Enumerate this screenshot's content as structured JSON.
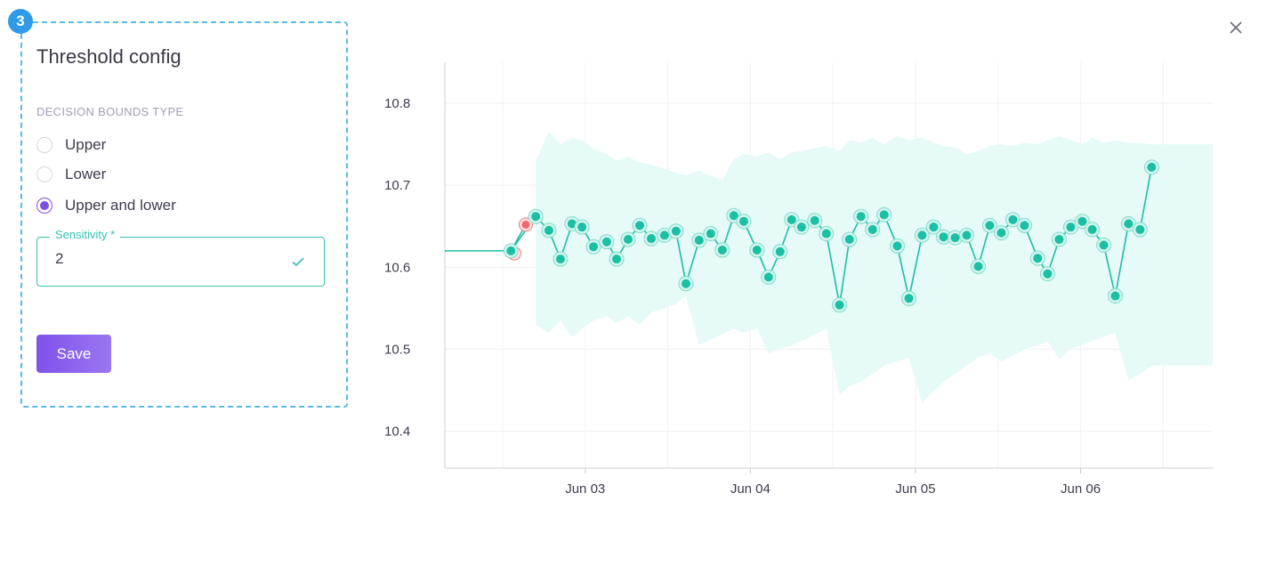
{
  "dialog": {
    "step_number": "3",
    "title": "Threshold config",
    "bounds_label": "DECISION BOUNDS TYPE",
    "options": [
      {
        "label": "Upper",
        "checked": false
      },
      {
        "label": "Lower",
        "checked": false
      },
      {
        "label": "Upper and lower",
        "checked": true
      }
    ],
    "sensitivity": {
      "label": "Sensitivity *",
      "value": "2",
      "valid": true
    },
    "save_label": "Save",
    "colors": {
      "accent": "#7b4ee6",
      "valid": "#35c2b0",
      "band": "#e6faf8",
      "series": "#1bbfa3",
      "anomaly": "#f07c7c"
    }
  },
  "chart_data": {
    "type": "line",
    "x_unit": "days from Jun 03",
    "xlim": [
      -0.85,
      3.8
    ],
    "ylim": [
      10.355,
      10.85
    ],
    "y_ticks": [
      "10.8",
      "10.7",
      "10.6",
      "10.5",
      "10.4"
    ],
    "y_tick_values": [
      10.8,
      10.7,
      10.6,
      10.5,
      10.4
    ],
    "x_ticks": [
      "Jun 03",
      "Jun 04",
      "Jun 05",
      "Jun 06"
    ],
    "x_tick_values": [
      0,
      1,
      2,
      3
    ],
    "grid": true,
    "baseline": {
      "x": [
        -0.85,
        -0.45
      ],
      "y": [
        10.62,
        10.62
      ]
    },
    "anomalies": [
      {
        "x": -0.43,
        "y": 10.617
      },
      {
        "x": -0.36,
        "y": 10.652
      }
    ],
    "series": [
      {
        "x": [
          -0.45,
          -0.3,
          -0.22,
          -0.15,
          -0.08,
          -0.02,
          0.05,
          0.13,
          0.19,
          0.26,
          0.33,
          0.4,
          0.48,
          0.55,
          0.61,
          0.69,
          0.76,
          0.83,
          0.9,
          0.96,
          1.04,
          1.11,
          1.18,
          1.25,
          1.31,
          1.39,
          1.46,
          1.54,
          1.6,
          1.67,
          1.74,
          1.81,
          1.89,
          1.96,
          2.04,
          2.11,
          2.17,
          2.24,
          2.31,
          2.38,
          2.45,
          2.52,
          2.59,
          2.66,
          2.74,
          2.8,
          2.87,
          2.94,
          3.01,
          3.07,
          3.14,
          3.21,
          3.29,
          3.36,
          3.43
        ],
        "y": [
          10.62,
          10.662,
          10.645,
          10.61,
          10.653,
          10.649,
          10.625,
          10.631,
          10.61,
          10.634,
          10.651,
          10.635,
          10.639,
          10.644,
          10.58,
          10.633,
          10.641,
          10.621,
          10.663,
          10.656,
          10.621,
          10.588,
          10.619,
          10.658,
          10.649,
          10.657,
          10.641,
          10.554,
          10.634,
          10.662,
          10.646,
          10.664,
          10.626,
          10.562,
          10.639,
          10.649,
          10.637,
          10.636,
          10.639,
          10.601,
          10.651,
          10.642,
          10.658,
          10.651,
          10.611,
          10.592,
          10.634,
          10.649,
          10.656,
          10.646,
          10.627,
          10.565,
          10.653,
          10.646,
          10.722
        ]
      }
    ],
    "band_upper": {
      "x": [
        -0.3,
        -0.22,
        -0.15,
        -0.08,
        -0.02,
        0.05,
        0.13,
        0.19,
        0.26,
        0.33,
        0.4,
        0.48,
        0.55,
        0.61,
        0.69,
        0.76,
        0.83,
        0.9,
        0.96,
        1.04,
        1.11,
        1.18,
        1.25,
        1.31,
        1.39,
        1.46,
        1.54,
        1.6,
        1.67,
        1.74,
        1.81,
        1.89,
        1.96,
        2.04,
        2.11,
        2.17,
        2.24,
        2.31,
        2.38,
        2.45,
        2.52,
        2.59,
        2.66,
        2.74,
        2.8,
        2.87,
        2.94,
        3.01,
        3.07,
        3.14,
        3.21,
        3.29,
        3.36,
        3.43,
        3.8
      ],
      "y": [
        10.73,
        10.765,
        10.75,
        10.758,
        10.755,
        10.745,
        10.738,
        10.73,
        10.735,
        10.728,
        10.725,
        10.72,
        10.715,
        10.712,
        10.718,
        10.712,
        10.706,
        10.732,
        10.738,
        10.735,
        10.74,
        10.732,
        10.74,
        10.742,
        10.745,
        10.748,
        10.742,
        10.755,
        10.752,
        10.758,
        10.75,
        10.76,
        10.755,
        10.758,
        10.752,
        10.748,
        10.746,
        10.738,
        10.742,
        10.748,
        10.75,
        10.748,
        10.752,
        10.75,
        10.755,
        10.76,
        10.755,
        10.75,
        10.758,
        10.752,
        10.755,
        10.752,
        10.752,
        10.75,
        10.75
      ]
    },
    "band_lower": {
      "x": [
        -0.3,
        -0.22,
        -0.15,
        -0.08,
        -0.02,
        0.05,
        0.13,
        0.19,
        0.26,
        0.33,
        0.4,
        0.48,
        0.55,
        0.61,
        0.69,
        0.76,
        0.83,
        0.9,
        0.96,
        1.04,
        1.11,
        1.18,
        1.25,
        1.31,
        1.39,
        1.46,
        1.54,
        1.6,
        1.67,
        1.74,
        1.81,
        1.89,
        1.96,
        2.04,
        2.11,
        2.17,
        2.24,
        2.31,
        2.38,
        2.45,
        2.52,
        2.59,
        2.66,
        2.74,
        2.8,
        2.87,
        2.94,
        3.01,
        3.07,
        3.14,
        3.21,
        3.29,
        3.36,
        3.43,
        3.8
      ],
      "y": [
        10.53,
        10.52,
        10.535,
        10.515,
        10.525,
        10.535,
        10.54,
        10.532,
        10.54,
        10.53,
        10.545,
        10.55,
        10.555,
        10.565,
        10.505,
        10.512,
        10.518,
        10.525,
        10.52,
        10.525,
        10.495,
        10.5,
        10.505,
        10.51,
        10.518,
        10.525,
        10.445,
        10.455,
        10.46,
        10.47,
        10.48,
        10.485,
        10.49,
        10.435,
        10.448,
        10.46,
        10.47,
        10.48,
        10.49,
        10.495,
        10.485,
        10.492,
        10.5,
        10.505,
        10.51,
        10.488,
        10.5,
        10.505,
        10.51,
        10.515,
        10.52,
        10.462,
        10.47,
        10.48,
        10.48
      ]
    }
  }
}
